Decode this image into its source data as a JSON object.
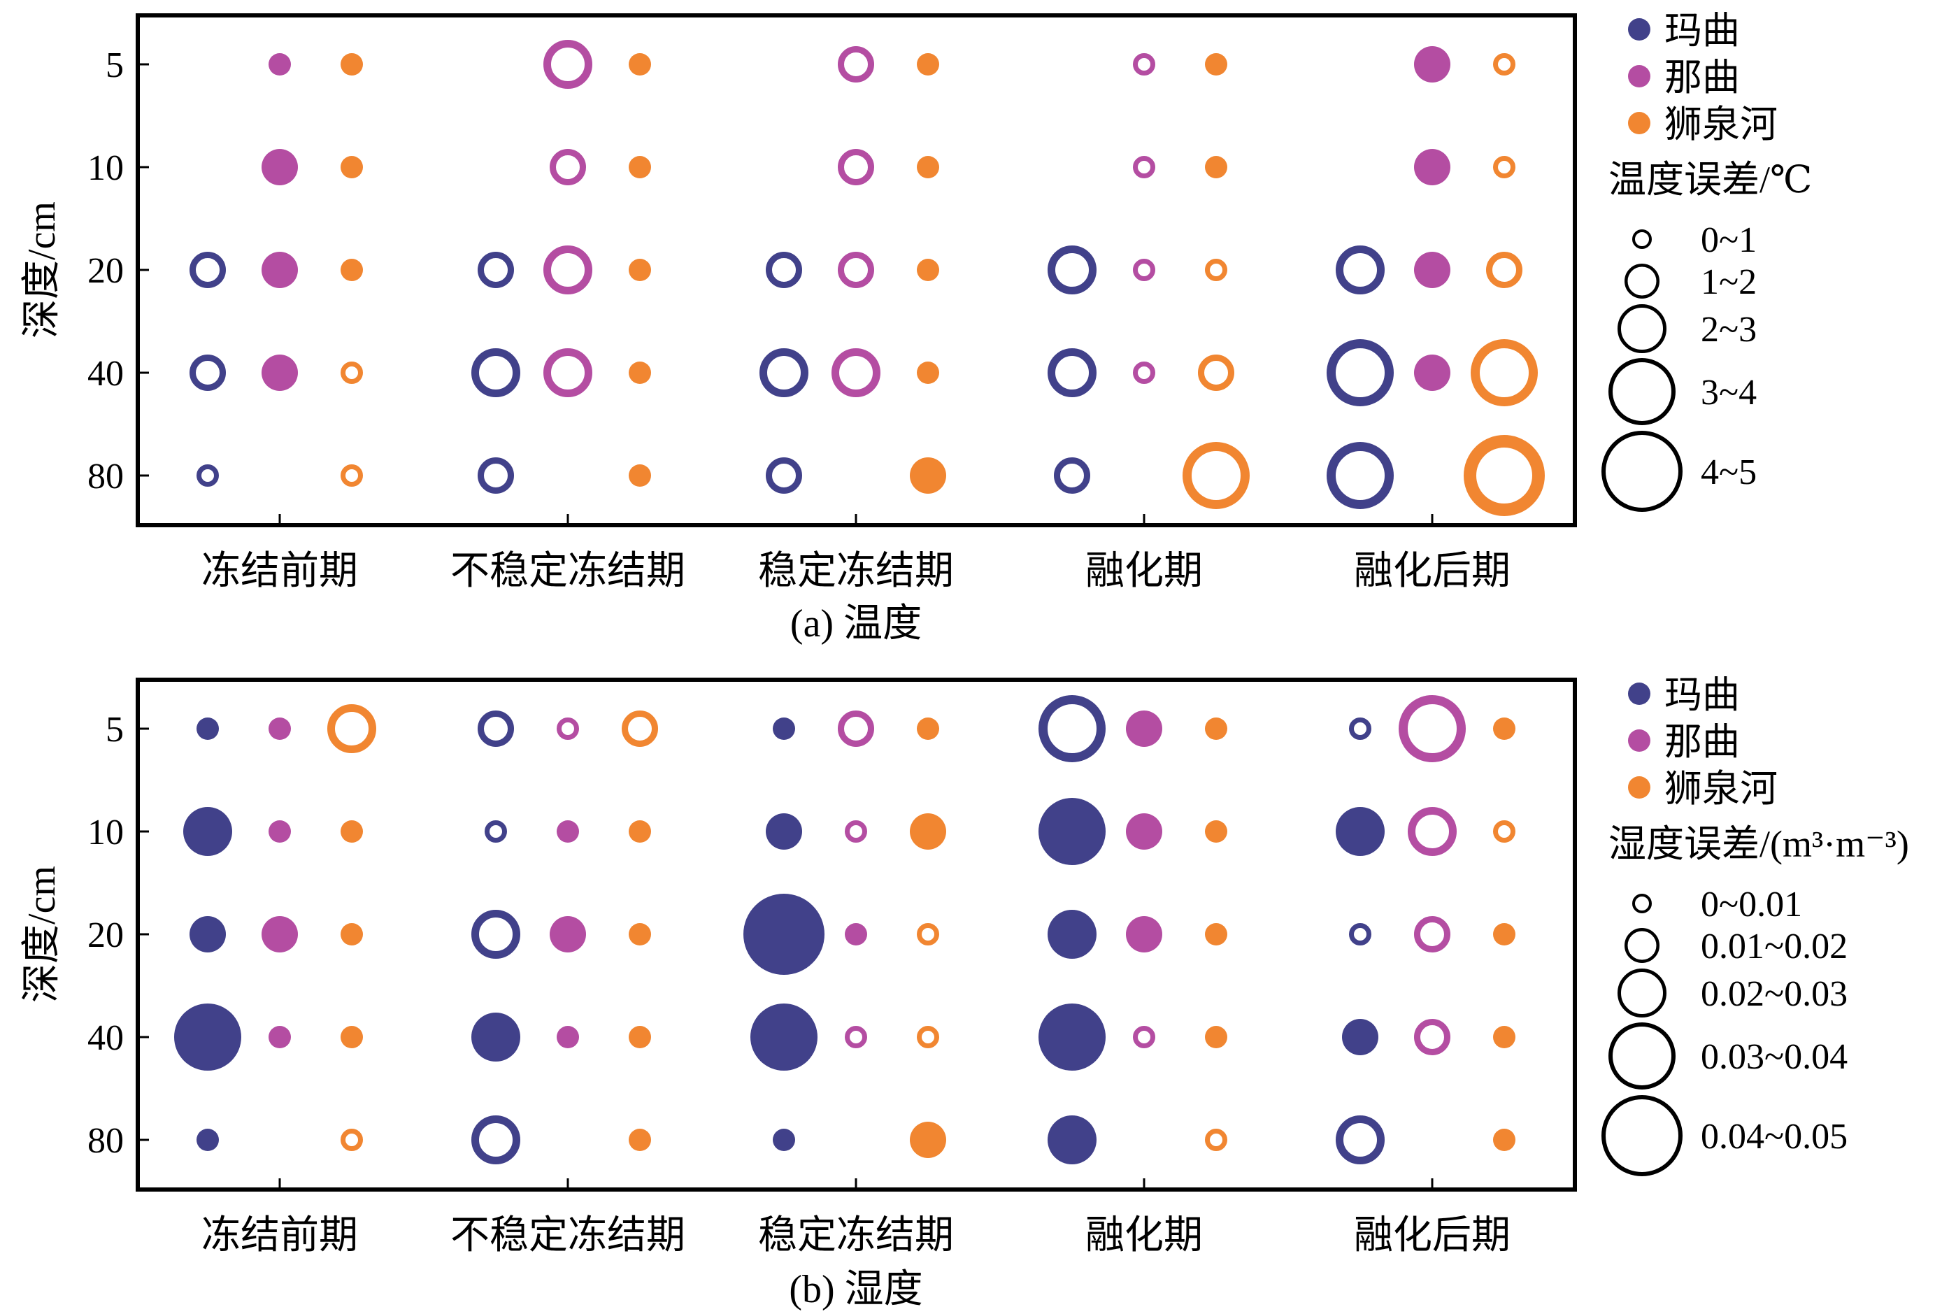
{
  "colors": {
    "maqu": "#41418A",
    "naqu": "#B44DA2",
    "shiquanhe": "#F18631"
  },
  "chart_data": [
    {
      "type": "bubble",
      "caption": "(a) 温度",
      "ylabel": "深度/cm",
      "categories": [
        "冻结前期",
        "不稳定冻结期",
        "稳定冻结期",
        "融化期",
        "融化后期"
      ],
      "depths": [
        "5",
        "10",
        "20",
        "40",
        "80"
      ],
      "series_names": [
        "玛曲",
        "那曲",
        "狮泉河"
      ],
      "legend_title": "温度误差/℃",
      "size_classes": [
        "0~1",
        "1~2",
        "2~3",
        "3~4",
        "4~5"
      ],
      "points": [
        {
          "stage": 0,
          "series": 1,
          "depth": 0,
          "size": 1,
          "filled": true
        },
        {
          "stage": 0,
          "series": 2,
          "depth": 0,
          "size": 1,
          "filled": true
        },
        {
          "stage": 0,
          "series": 1,
          "depth": 1,
          "size": 2,
          "filled": true
        },
        {
          "stage": 0,
          "series": 2,
          "depth": 1,
          "size": 1,
          "filled": true
        },
        {
          "stage": 0,
          "series": 0,
          "depth": 2,
          "size": 2,
          "filled": false
        },
        {
          "stage": 0,
          "series": 1,
          "depth": 2,
          "size": 2,
          "filled": true
        },
        {
          "stage": 0,
          "series": 2,
          "depth": 2,
          "size": 1,
          "filled": true
        },
        {
          "stage": 0,
          "series": 0,
          "depth": 3,
          "size": 2,
          "filled": false
        },
        {
          "stage": 0,
          "series": 1,
          "depth": 3,
          "size": 2,
          "filled": true
        },
        {
          "stage": 0,
          "series": 2,
          "depth": 3,
          "size": 1,
          "filled": false
        },
        {
          "stage": 0,
          "series": 0,
          "depth": 4,
          "size": 1,
          "filled": false
        },
        {
          "stage": 0,
          "series": 2,
          "depth": 4,
          "size": 1,
          "filled": false
        },
        {
          "stage": 1,
          "series": 1,
          "depth": 0,
          "size": 3,
          "filled": false
        },
        {
          "stage": 1,
          "series": 2,
          "depth": 0,
          "size": 1,
          "filled": true
        },
        {
          "stage": 1,
          "series": 1,
          "depth": 1,
          "size": 2,
          "filled": false
        },
        {
          "stage": 1,
          "series": 2,
          "depth": 1,
          "size": 1,
          "filled": true
        },
        {
          "stage": 1,
          "series": 0,
          "depth": 2,
          "size": 2,
          "filled": false
        },
        {
          "stage": 1,
          "series": 1,
          "depth": 2,
          "size": 3,
          "filled": false
        },
        {
          "stage": 1,
          "series": 2,
          "depth": 2,
          "size": 1,
          "filled": true
        },
        {
          "stage": 1,
          "series": 0,
          "depth": 3,
          "size": 3,
          "filled": false
        },
        {
          "stage": 1,
          "series": 1,
          "depth": 3,
          "size": 3,
          "filled": false
        },
        {
          "stage": 1,
          "series": 2,
          "depth": 3,
          "size": 1,
          "filled": true
        },
        {
          "stage": 1,
          "series": 0,
          "depth": 4,
          "size": 2,
          "filled": false
        },
        {
          "stage": 1,
          "series": 2,
          "depth": 4,
          "size": 1,
          "filled": true
        },
        {
          "stage": 2,
          "series": 1,
          "depth": 0,
          "size": 2,
          "filled": false
        },
        {
          "stage": 2,
          "series": 2,
          "depth": 0,
          "size": 1,
          "filled": true
        },
        {
          "stage": 2,
          "series": 1,
          "depth": 1,
          "size": 2,
          "filled": false
        },
        {
          "stage": 2,
          "series": 2,
          "depth": 1,
          "size": 1,
          "filled": true
        },
        {
          "stage": 2,
          "series": 0,
          "depth": 2,
          "size": 2,
          "filled": false
        },
        {
          "stage": 2,
          "series": 1,
          "depth": 2,
          "size": 2,
          "filled": false
        },
        {
          "stage": 2,
          "series": 2,
          "depth": 2,
          "size": 1,
          "filled": true
        },
        {
          "stage": 2,
          "series": 0,
          "depth": 3,
          "size": 3,
          "filled": false
        },
        {
          "stage": 2,
          "series": 1,
          "depth": 3,
          "size": 3,
          "filled": false
        },
        {
          "stage": 2,
          "series": 2,
          "depth": 3,
          "size": 1,
          "filled": true
        },
        {
          "stage": 2,
          "series": 0,
          "depth": 4,
          "size": 2,
          "filled": false
        },
        {
          "stage": 2,
          "series": 2,
          "depth": 4,
          "size": 2,
          "filled": true
        },
        {
          "stage": 3,
          "series": 1,
          "depth": 0,
          "size": 1,
          "filled": false
        },
        {
          "stage": 3,
          "series": 2,
          "depth": 0,
          "size": 1,
          "filled": true
        },
        {
          "stage": 3,
          "series": 1,
          "depth": 1,
          "size": 1,
          "filled": false
        },
        {
          "stage": 3,
          "series": 2,
          "depth": 1,
          "size": 1,
          "filled": true
        },
        {
          "stage": 3,
          "series": 0,
          "depth": 2,
          "size": 3,
          "filled": false
        },
        {
          "stage": 3,
          "series": 1,
          "depth": 2,
          "size": 1,
          "filled": false
        },
        {
          "stage": 3,
          "series": 2,
          "depth": 2,
          "size": 1,
          "filled": false
        },
        {
          "stage": 3,
          "series": 0,
          "depth": 3,
          "size": 3,
          "filled": false
        },
        {
          "stage": 3,
          "series": 1,
          "depth": 3,
          "size": 1,
          "filled": false
        },
        {
          "stage": 3,
          "series": 2,
          "depth": 3,
          "size": 2,
          "filled": false
        },
        {
          "stage": 3,
          "series": 0,
          "depth": 4,
          "size": 2,
          "filled": false
        },
        {
          "stage": 3,
          "series": 2,
          "depth": 4,
          "size": 4,
          "filled": false
        },
        {
          "stage": 4,
          "series": 1,
          "depth": 0,
          "size": 2,
          "filled": true
        },
        {
          "stage": 4,
          "series": 2,
          "depth": 0,
          "size": 1,
          "filled": false
        },
        {
          "stage": 4,
          "series": 1,
          "depth": 1,
          "size": 2,
          "filled": true
        },
        {
          "stage": 4,
          "series": 2,
          "depth": 1,
          "size": 1,
          "filled": false
        },
        {
          "stage": 4,
          "series": 0,
          "depth": 2,
          "size": 3,
          "filled": false
        },
        {
          "stage": 4,
          "series": 1,
          "depth": 2,
          "size": 2,
          "filled": true
        },
        {
          "stage": 4,
          "series": 2,
          "depth": 2,
          "size": 2,
          "filled": false
        },
        {
          "stage": 4,
          "series": 0,
          "depth": 3,
          "size": 4,
          "filled": false
        },
        {
          "stage": 4,
          "series": 1,
          "depth": 3,
          "size": 2,
          "filled": true
        },
        {
          "stage": 4,
          "series": 2,
          "depth": 3,
          "size": 4,
          "filled": false
        },
        {
          "stage": 4,
          "series": 0,
          "depth": 4,
          "size": 4,
          "filled": false
        },
        {
          "stage": 4,
          "series": 2,
          "depth": 4,
          "size": 5,
          "filled": false
        }
      ]
    },
    {
      "type": "bubble",
      "caption": "(b) 湿度",
      "ylabel": "深度/cm",
      "categories": [
        "冻结前期",
        "不稳定冻结期",
        "稳定冻结期",
        "融化期",
        "融化后期"
      ],
      "depths": [
        "5",
        "10",
        "20",
        "40",
        "80"
      ],
      "series_names": [
        "玛曲",
        "那曲",
        "狮泉河"
      ],
      "legend_title": "湿度误差/(m³·m⁻³)",
      "size_classes": [
        "0~0.01",
        "0.01~0.02",
        "0.02~0.03",
        "0.03~0.04",
        "0.04~0.05"
      ],
      "points": [
        {
          "stage": 0,
          "series": 0,
          "depth": 0,
          "size": 1,
          "filled": true
        },
        {
          "stage": 0,
          "series": 1,
          "depth": 0,
          "size": 1,
          "filled": true
        },
        {
          "stage": 0,
          "series": 2,
          "depth": 0,
          "size": 3,
          "filled": false
        },
        {
          "stage": 0,
          "series": 0,
          "depth": 1,
          "size": 3,
          "filled": true
        },
        {
          "stage": 0,
          "series": 1,
          "depth": 1,
          "size": 1,
          "filled": true
        },
        {
          "stage": 0,
          "series": 2,
          "depth": 1,
          "size": 1,
          "filled": true
        },
        {
          "stage": 0,
          "series": 0,
          "depth": 2,
          "size": 2,
          "filled": true
        },
        {
          "stage": 0,
          "series": 1,
          "depth": 2,
          "size": 2,
          "filled": true
        },
        {
          "stage": 0,
          "series": 2,
          "depth": 2,
          "size": 1,
          "filled": true
        },
        {
          "stage": 0,
          "series": 0,
          "depth": 3,
          "size": 4,
          "filled": true
        },
        {
          "stage": 0,
          "series": 1,
          "depth": 3,
          "size": 1,
          "filled": true
        },
        {
          "stage": 0,
          "series": 2,
          "depth": 3,
          "size": 1,
          "filled": true
        },
        {
          "stage": 0,
          "series": 0,
          "depth": 4,
          "size": 1,
          "filled": true
        },
        {
          "stage": 0,
          "series": 2,
          "depth": 4,
          "size": 1,
          "filled": false
        },
        {
          "stage": 1,
          "series": 0,
          "depth": 0,
          "size": 2,
          "filled": false
        },
        {
          "stage": 1,
          "series": 1,
          "depth": 0,
          "size": 1,
          "filled": false
        },
        {
          "stage": 1,
          "series": 2,
          "depth": 0,
          "size": 2,
          "filled": false
        },
        {
          "stage": 1,
          "series": 0,
          "depth": 1,
          "size": 1,
          "filled": false
        },
        {
          "stage": 1,
          "series": 1,
          "depth": 1,
          "size": 1,
          "filled": true
        },
        {
          "stage": 1,
          "series": 2,
          "depth": 1,
          "size": 1,
          "filled": true
        },
        {
          "stage": 1,
          "series": 0,
          "depth": 2,
          "size": 3,
          "filled": false
        },
        {
          "stage": 1,
          "series": 1,
          "depth": 2,
          "size": 2,
          "filled": true
        },
        {
          "stage": 1,
          "series": 2,
          "depth": 2,
          "size": 1,
          "filled": true
        },
        {
          "stage": 1,
          "series": 0,
          "depth": 3,
          "size": 3,
          "filled": true
        },
        {
          "stage": 1,
          "series": 1,
          "depth": 3,
          "size": 1,
          "filled": true
        },
        {
          "stage": 1,
          "series": 2,
          "depth": 3,
          "size": 1,
          "filled": true
        },
        {
          "stage": 1,
          "series": 0,
          "depth": 4,
          "size": 3,
          "filled": false
        },
        {
          "stage": 1,
          "series": 2,
          "depth": 4,
          "size": 1,
          "filled": true
        },
        {
          "stage": 2,
          "series": 0,
          "depth": 0,
          "size": 1,
          "filled": true
        },
        {
          "stage": 2,
          "series": 1,
          "depth": 0,
          "size": 2,
          "filled": false
        },
        {
          "stage": 2,
          "series": 2,
          "depth": 0,
          "size": 1,
          "filled": true
        },
        {
          "stage": 2,
          "series": 0,
          "depth": 1,
          "size": 2,
          "filled": true
        },
        {
          "stage": 2,
          "series": 1,
          "depth": 1,
          "size": 1,
          "filled": false
        },
        {
          "stage": 2,
          "series": 2,
          "depth": 1,
          "size": 2,
          "filled": true
        },
        {
          "stage": 2,
          "series": 0,
          "depth": 2,
          "size": 5,
          "filled": true
        },
        {
          "stage": 2,
          "series": 1,
          "depth": 2,
          "size": 1,
          "filled": true
        },
        {
          "stage": 2,
          "series": 2,
          "depth": 2,
          "size": 1,
          "filled": false
        },
        {
          "stage": 2,
          "series": 0,
          "depth": 3,
          "size": 4,
          "filled": true
        },
        {
          "stage": 2,
          "series": 1,
          "depth": 3,
          "size": 1,
          "filled": false
        },
        {
          "stage": 2,
          "series": 2,
          "depth": 3,
          "size": 1,
          "filled": false
        },
        {
          "stage": 2,
          "series": 0,
          "depth": 4,
          "size": 1,
          "filled": true
        },
        {
          "stage": 2,
          "series": 2,
          "depth": 4,
          "size": 2,
          "filled": true
        },
        {
          "stage": 3,
          "series": 0,
          "depth": 0,
          "size": 4,
          "filled": false
        },
        {
          "stage": 3,
          "series": 1,
          "depth": 0,
          "size": 2,
          "filled": true
        },
        {
          "stage": 3,
          "series": 2,
          "depth": 0,
          "size": 1,
          "filled": true
        },
        {
          "stage": 3,
          "series": 0,
          "depth": 1,
          "size": 4,
          "filled": true
        },
        {
          "stage": 3,
          "series": 1,
          "depth": 1,
          "size": 2,
          "filled": true
        },
        {
          "stage": 3,
          "series": 2,
          "depth": 1,
          "size": 1,
          "filled": true
        },
        {
          "stage": 3,
          "series": 0,
          "depth": 2,
          "size": 3,
          "filled": true
        },
        {
          "stage": 3,
          "series": 1,
          "depth": 2,
          "size": 2,
          "filled": true
        },
        {
          "stage": 3,
          "series": 2,
          "depth": 2,
          "size": 1,
          "filled": true
        },
        {
          "stage": 3,
          "series": 0,
          "depth": 3,
          "size": 4,
          "filled": true
        },
        {
          "stage": 3,
          "series": 1,
          "depth": 3,
          "size": 1,
          "filled": false
        },
        {
          "stage": 3,
          "series": 2,
          "depth": 3,
          "size": 1,
          "filled": true
        },
        {
          "stage": 3,
          "series": 0,
          "depth": 4,
          "size": 3,
          "filled": true
        },
        {
          "stage": 3,
          "series": 2,
          "depth": 4,
          "size": 1,
          "filled": false
        },
        {
          "stage": 4,
          "series": 0,
          "depth": 0,
          "size": 1,
          "filled": false
        },
        {
          "stage": 4,
          "series": 1,
          "depth": 0,
          "size": 4,
          "filled": false
        },
        {
          "stage": 4,
          "series": 2,
          "depth": 0,
          "size": 1,
          "filled": true
        },
        {
          "stage": 4,
          "series": 0,
          "depth": 1,
          "size": 3,
          "filled": true
        },
        {
          "stage": 4,
          "series": 1,
          "depth": 1,
          "size": 3,
          "filled": false
        },
        {
          "stage": 4,
          "series": 2,
          "depth": 1,
          "size": 1,
          "filled": false
        },
        {
          "stage": 4,
          "series": 0,
          "depth": 2,
          "size": 1,
          "filled": false
        },
        {
          "stage": 4,
          "series": 1,
          "depth": 2,
          "size": 2,
          "filled": false
        },
        {
          "stage": 4,
          "series": 2,
          "depth": 2,
          "size": 1,
          "filled": true
        },
        {
          "stage": 4,
          "series": 0,
          "depth": 3,
          "size": 2,
          "filled": true
        },
        {
          "stage": 4,
          "series": 1,
          "depth": 3,
          "size": 2,
          "filled": false
        },
        {
          "stage": 4,
          "series": 2,
          "depth": 3,
          "size": 1,
          "filled": true
        },
        {
          "stage": 4,
          "series": 0,
          "depth": 4,
          "size": 3,
          "filled": false
        },
        {
          "stage": 4,
          "series": 2,
          "depth": 4,
          "size": 1,
          "filled": true
        }
      ]
    }
  ]
}
